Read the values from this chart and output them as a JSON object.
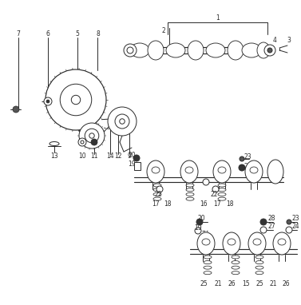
{
  "bg_color": "#ffffff",
  "lc": "#2a2a2a",
  "fig_w": 3.77,
  "fig_h": 3.82,
  "dpi": 100,
  "xmin": 0,
  "xmax": 377,
  "ymin": 0,
  "ymax": 382
}
